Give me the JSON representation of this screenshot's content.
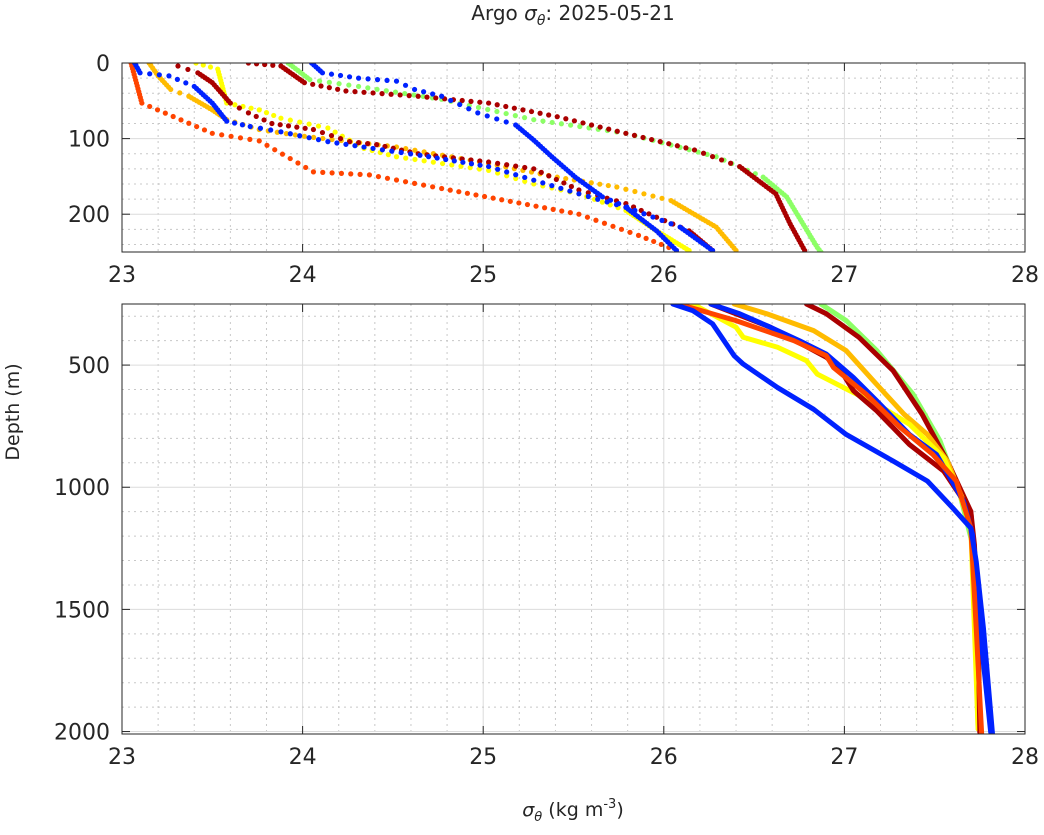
{
  "chart_data": {
    "type": "line",
    "title": "Argo σθ: 2025-05-21",
    "title_prefix": "Argo ",
    "title_symbol": "σ",
    "title_sub": "θ",
    "title_suffix": ": 2025-05-21",
    "xlabel": "σθ (kg m-3)",
    "xlabel_symbol": "σ",
    "xlabel_sub": "θ",
    "xlabel_unit": " (kg m",
    "xlabel_sup": "-3",
    "xlabel_close": ")",
    "ylabel": "Depth (m)",
    "grid": true,
    "panels": [
      {
        "name": "upper",
        "xlim": [
          23,
          28
        ],
        "ylim": [
          0,
          250
        ],
        "xticks": [
          "23",
          "24",
          "25",
          "26",
          "27",
          "28"
        ],
        "yticks": [
          "0",
          "100",
          "200"
        ],
        "style": "markers"
      },
      {
        "name": "lower",
        "xlim": [
          23,
          28
        ],
        "ylim": [
          250,
          2010
        ],
        "xticks": [
          "23",
          "24",
          "25",
          "26",
          "27",
          "28"
        ],
        "yticks": [
          "500",
          "1000",
          "1500",
          "2000"
        ],
        "style": "lines"
      }
    ],
    "series": [
      {
        "name": "profile-lightgreen",
        "color": "#8cff66",
        "upper": [
          [
            23.92,
            0
          ],
          [
            24.04,
            22
          ],
          [
            24.31,
            31
          ],
          [
            24.77,
            48
          ],
          [
            25.28,
            75
          ],
          [
            25.79,
            93
          ],
          [
            26.29,
            124
          ],
          [
            26.55,
            151
          ],
          [
            26.68,
            177
          ],
          [
            26.85,
            244
          ],
          [
            26.87,
            250
          ]
        ],
        "lower": [
          [
            26.87,
            250
          ],
          [
            27.01,
            318
          ],
          [
            27.18,
            441
          ],
          [
            27.38,
            619
          ],
          [
            27.53,
            811
          ],
          [
            27.64,
            1030
          ],
          [
            27.71,
            1236
          ],
          [
            27.74,
            1578
          ],
          [
            27.75,
            1989
          ]
        ]
      },
      {
        "name": "profile-darkred-2",
        "color": "#aa0000",
        "upper": [
          [
            23.7,
            0
          ],
          [
            23.88,
            4
          ],
          [
            24.01,
            26
          ],
          [
            24.24,
            37
          ],
          [
            24.64,
            44
          ],
          [
            25.03,
            53
          ],
          [
            25.41,
            71
          ],
          [
            25.79,
            93
          ],
          [
            26.17,
            115
          ],
          [
            26.42,
            137
          ],
          [
            26.62,
            173
          ],
          [
            26.7,
            213
          ],
          [
            26.78,
            248
          ]
        ],
        "lower": [
          [
            26.79,
            250
          ],
          [
            26.9,
            290
          ],
          [
            27.08,
            386
          ],
          [
            27.27,
            523
          ],
          [
            27.43,
            701
          ],
          [
            27.57,
            893
          ],
          [
            27.7,
            1099
          ],
          [
            27.72,
            1304
          ],
          [
            27.75,
            2003
          ]
        ]
      },
      {
        "name": "profile-gold",
        "color": "#ffbb00",
        "upper": [
          [
            23.15,
            0
          ],
          [
            23.2,
            17
          ],
          [
            23.27,
            35
          ],
          [
            23.37,
            44
          ],
          [
            23.5,
            62
          ],
          [
            23.58,
            75
          ],
          [
            23.76,
            88
          ],
          [
            24.01,
            97
          ],
          [
            24.52,
            111
          ],
          [
            25.03,
            133
          ],
          [
            25.41,
            151
          ],
          [
            25.74,
            164
          ],
          [
            26.04,
            182
          ],
          [
            26.29,
            217
          ],
          [
            26.4,
            248
          ]
        ],
        "lower": [
          [
            26.39,
            250
          ],
          [
            26.57,
            290
          ],
          [
            26.83,
            359
          ],
          [
            27.01,
            441
          ],
          [
            27.16,
            564
          ],
          [
            27.33,
            701
          ],
          [
            27.46,
            784
          ],
          [
            27.57,
            893
          ],
          [
            27.66,
            1058
          ],
          [
            27.7,
            1167
          ],
          [
            27.73,
            1578
          ],
          [
            27.74,
            1989
          ]
        ]
      },
      {
        "name": "profile-yellow",
        "color": "#ffff00",
        "upper": [
          [
            23.41,
            0
          ],
          [
            23.53,
            8
          ],
          [
            23.58,
            53
          ],
          [
            23.76,
            62
          ],
          [
            23.88,
            73
          ],
          [
            24.14,
            86
          ],
          [
            24.34,
            113
          ],
          [
            24.52,
            124
          ],
          [
            25.03,
            142
          ],
          [
            25.28,
            160
          ],
          [
            25.53,
            173
          ],
          [
            25.79,
            195
          ],
          [
            25.96,
            222
          ],
          [
            26.14,
            248
          ]
        ],
        "lower": [
          [
            26.16,
            250
          ],
          [
            26.4,
            345
          ],
          [
            26.44,
            386
          ],
          [
            26.63,
            427
          ],
          [
            26.79,
            482
          ],
          [
            26.85,
            537
          ],
          [
            27.03,
            605
          ],
          [
            27.18,
            660
          ],
          [
            27.36,
            742
          ],
          [
            27.55,
            879
          ],
          [
            27.64,
            1030
          ],
          [
            27.7,
            1167
          ],
          [
            27.72,
            1578
          ],
          [
            27.74,
            1989
          ]
        ]
      },
      {
        "name": "profile-darkred-1",
        "color": "#aa0000",
        "upper": [
          [
            23.31,
            4
          ],
          [
            23.42,
            13
          ],
          [
            23.5,
            26
          ],
          [
            23.6,
            53
          ],
          [
            23.7,
            66
          ],
          [
            23.83,
            80
          ],
          [
            24.06,
            88
          ],
          [
            24.26,
            104
          ],
          [
            24.41,
            108
          ],
          [
            24.64,
            120
          ],
          [
            25.03,
            131
          ],
          [
            25.28,
            140
          ],
          [
            25.53,
            168
          ],
          [
            25.79,
            186
          ],
          [
            25.96,
            204
          ],
          [
            26.14,
            222
          ],
          [
            26.27,
            248
          ]
        ],
        "lower": [
          [
            26.26,
            250
          ],
          [
            26.59,
            345
          ],
          [
            26.9,
            468
          ],
          [
            26.97,
            510
          ],
          [
            27.05,
            605
          ],
          [
            27.18,
            688
          ],
          [
            27.36,
            825
          ],
          [
            27.55,
            934
          ],
          [
            27.7,
            1099
          ],
          [
            27.72,
            1236
          ],
          [
            27.74,
            1578
          ],
          [
            27.75,
            2003
          ]
        ]
      },
      {
        "name": "profile-blue-2",
        "color": "#0022ff",
        "upper": [
          [
            24.05,
            0
          ],
          [
            24.11,
            13
          ],
          [
            24.31,
            20
          ],
          [
            24.52,
            24
          ],
          [
            24.62,
            35
          ],
          [
            24.77,
            44
          ],
          [
            24.97,
            66
          ],
          [
            25.18,
            82
          ],
          [
            25.28,
            102
          ],
          [
            25.38,
            124
          ],
          [
            25.51,
            151
          ],
          [
            25.66,
            177
          ],
          [
            25.84,
            195
          ],
          [
            26.09,
            217
          ],
          [
            26.27,
            248
          ]
        ],
        "lower": [
          [
            26.26,
            250
          ],
          [
            26.42,
            290
          ],
          [
            26.59,
            345
          ],
          [
            26.75,
            400
          ],
          [
            26.9,
            455
          ],
          [
            27.05,
            551
          ],
          [
            27.18,
            647
          ],
          [
            27.36,
            784
          ],
          [
            27.51,
            866
          ],
          [
            27.66,
            1058
          ],
          [
            27.71,
            1195
          ],
          [
            27.75,
            1578
          ],
          [
            27.81,
            2003
          ]
        ]
      },
      {
        "name": "profile-orangered",
        "color": "#ff4400",
        "upper": [
          [
            23.05,
            0
          ],
          [
            23.11,
            53
          ],
          [
            23.5,
            93
          ],
          [
            23.76,
            103
          ],
          [
            24.06,
            144
          ],
          [
            24.37,
            148
          ],
          [
            24.77,
            166
          ],
          [
            25.53,
            200
          ],
          [
            25.86,
            228
          ],
          [
            26.07,
            248
          ]
        ],
        "lower": [
          [
            26.08,
            250
          ],
          [
            26.4,
            318
          ],
          [
            26.72,
            400
          ],
          [
            26.9,
            462
          ],
          [
            26.94,
            510
          ],
          [
            27.12,
            619
          ],
          [
            27.31,
            756
          ],
          [
            27.49,
            866
          ],
          [
            27.62,
            975
          ],
          [
            27.7,
            1167
          ],
          [
            27.73,
            1578
          ],
          [
            27.76,
            2010
          ]
        ]
      },
      {
        "name": "profile-blue-1",
        "color": "#0022ff",
        "upper": [
          [
            23.07,
            0
          ],
          [
            23.1,
            13
          ],
          [
            23.26,
            17
          ],
          [
            23.4,
            31
          ],
          [
            23.5,
            53
          ],
          [
            23.58,
            77
          ],
          [
            23.71,
            84
          ],
          [
            23.88,
            91
          ],
          [
            24.14,
            104
          ],
          [
            24.39,
            113
          ],
          [
            24.65,
            122
          ],
          [
            25.03,
            137
          ],
          [
            25.28,
            155
          ],
          [
            25.53,
            173
          ],
          [
            25.79,
            191
          ],
          [
            25.96,
            222
          ],
          [
            26.07,
            248
          ]
        ],
        "lower": [
          [
            26.05,
            250
          ],
          [
            26.16,
            277
          ],
          [
            26.27,
            331
          ],
          [
            26.39,
            462
          ],
          [
            26.44,
            496
          ],
          [
            26.63,
            592
          ],
          [
            26.83,
            681
          ],
          [
            27.01,
            784
          ],
          [
            27.27,
            893
          ],
          [
            27.46,
            975
          ],
          [
            27.6,
            1085
          ],
          [
            27.7,
            1167
          ],
          [
            27.73,
            1304
          ],
          [
            27.77,
            1578
          ],
          [
            27.82,
            2010
          ]
        ]
      }
    ]
  }
}
